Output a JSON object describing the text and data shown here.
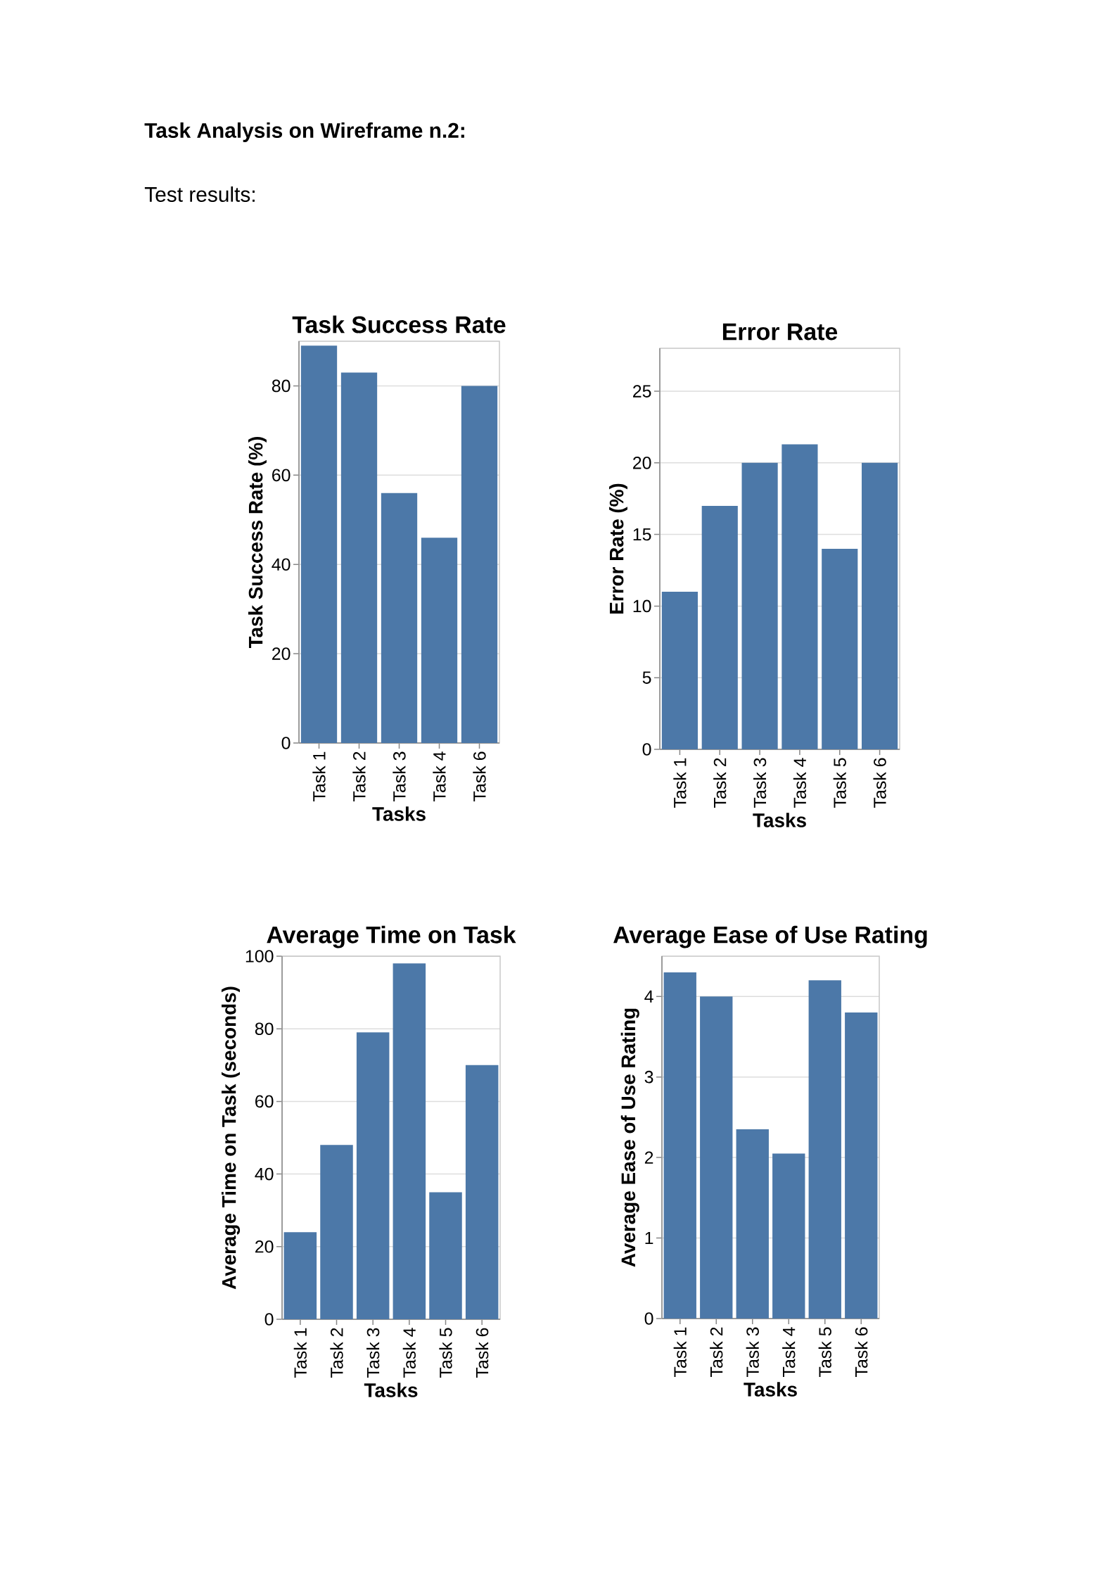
{
  "chart_data": [
    {
      "type": "bar",
      "title": "Task Success Rate",
      "xlabel": "Tasks",
      "ylabel": "Task Success Rate (%)",
      "annotations": [
        "Task Analysis on Wireframe n.2:",
        "Test results:"
      ],
      "categories": [
        "Task 1",
        "Task 2",
        "Task 3",
        "Task 4",
        "Task 6"
      ],
      "values": [
        89,
        83,
        56,
        46,
        80
      ],
      "color": "#4c78a8",
      "ylim": [
        0,
        90
      ],
      "yticks": [
        0,
        20,
        40,
        60,
        80
      ],
      "grid": "y"
    },
    {
      "type": "bar",
      "title": "Error Rate",
      "xlabel": "Tasks",
      "ylabel": "Error Rate (%)",
      "categories": [
        "Task 1",
        "Task 2",
        "Task 3",
        "Task 4",
        "Task 5",
        "Task 6"
      ],
      "values": [
        11,
        17,
        20,
        21.3,
        14,
        20
      ],
      "color": "#4c78a8",
      "ylim": [
        0,
        28
      ],
      "yticks": [
        0,
        5,
        10,
        15,
        20,
        25
      ],
      "grid": "y"
    },
    {
      "type": "bar",
      "title": "Average Time on Task",
      "xlabel": "Tasks",
      "ylabel": "Average Time on Task (seconds)",
      "categories": [
        "Task 1",
        "Task 2",
        "Task 3",
        "Task 4",
        "Task 5",
        "Task 6"
      ],
      "values": [
        24,
        48,
        79,
        98,
        35,
        70
      ],
      "color": "#4c78a8",
      "ylim": [
        0,
        100
      ],
      "yticks": [
        0,
        20,
        40,
        60,
        80,
        100
      ],
      "grid": "y"
    },
    {
      "type": "bar",
      "title": "Average Ease of Use Rating",
      "xlabel": "Tasks",
      "ylabel": "Average Ease of Use Rating",
      "categories": [
        "Task 1",
        "Task 2",
        "Task 3",
        "Task 4",
        "Task 5",
        "Task 6"
      ],
      "values": [
        4.3,
        4.0,
        2.35,
        2.05,
        4.2,
        3.8
      ],
      "color": "#4c78a8",
      "ylim": [
        0,
        4.5
      ],
      "yticks": [
        0,
        1,
        2,
        3,
        4
      ],
      "grid": "y"
    }
  ]
}
